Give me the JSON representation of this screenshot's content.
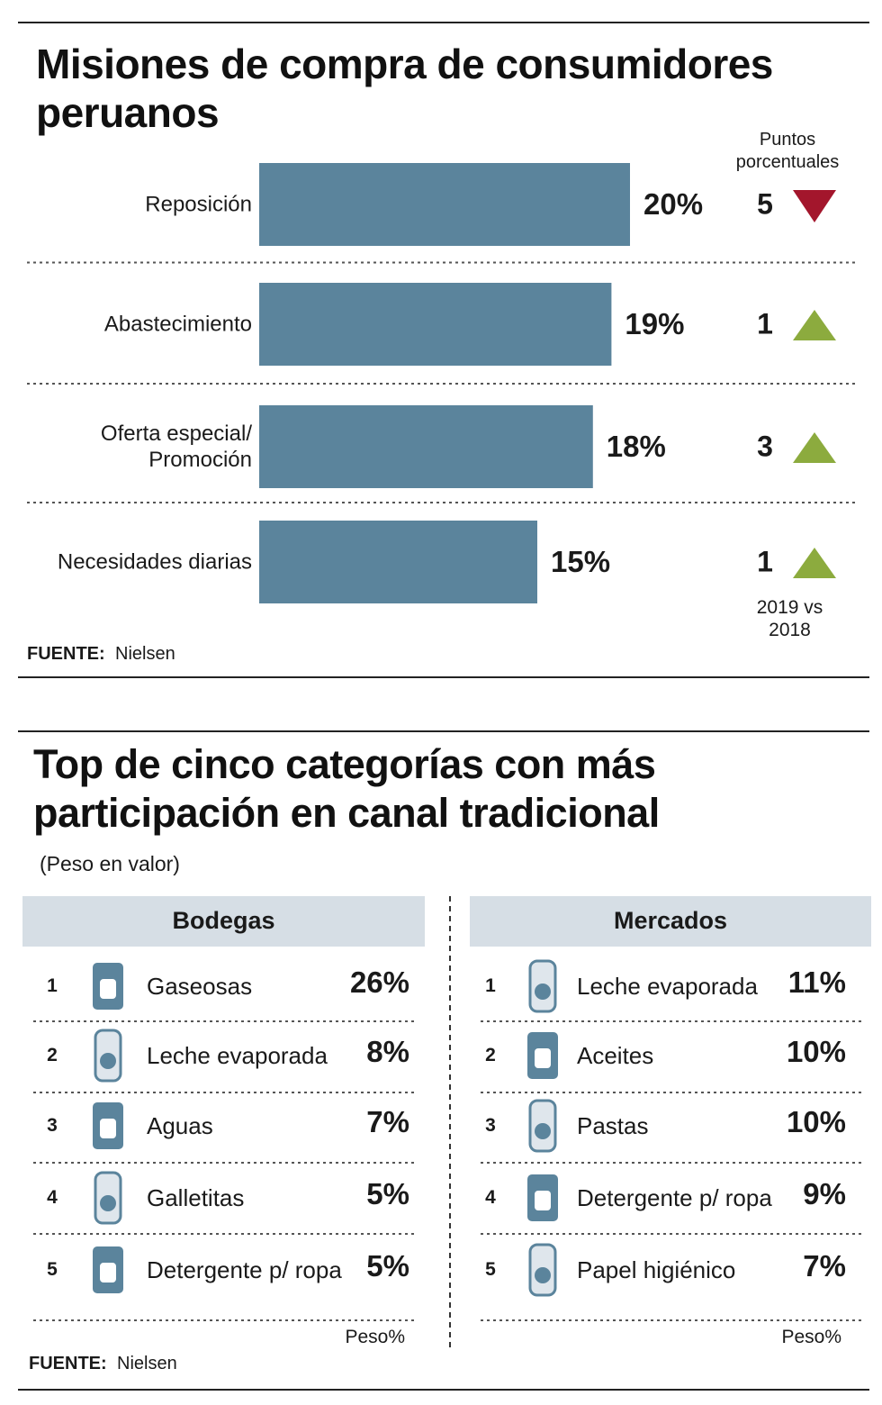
{
  "chart_data": {
    "type": "bar",
    "orientation": "horizontal",
    "title": "Misiones de compra de consumidores peruanos",
    "categories": [
      "Reposición",
      "Abastecimiento",
      "Oferta especial/ Promoción",
      "Necesidades diarias"
    ],
    "values": [
      20,
      19,
      18,
      15
    ],
    "value_labels": [
      "20%",
      "19%",
      "18%",
      "15%"
    ],
    "color": "#5b849c",
    "change_label": "Puntos porcentuales",
    "changes": [
      5,
      1,
      3,
      1
    ],
    "change_directions": [
      "down",
      "up",
      "up",
      "up"
    ],
    "change_colors": {
      "down": "#a3162c",
      "up": "#8cab3e"
    },
    "change_note": "2019 vs 2018",
    "source_label": "FUENTE:",
    "source": "Nielsen"
  },
  "table_section": {
    "title": "Top de cinco categorías con más participación en canal tradicional",
    "subtitle": "(Peso en valor)",
    "tables": [
      {
        "header": "Bodegas",
        "unit_label": "Peso%",
        "rows": [
          {
            "rank": 1,
            "name": "Gaseosas",
            "value": 26,
            "value_label": "26%"
          },
          {
            "rank": 2,
            "name": "Leche evaporada",
            "value": 8,
            "value_label": "8%"
          },
          {
            "rank": 3,
            "name": "Aguas",
            "value": 7,
            "value_label": "7%"
          },
          {
            "rank": 4,
            "name": "Galletitas",
            "value": 5,
            "value_label": "5%"
          },
          {
            "rank": 5,
            "name": "Detergente p/ ropa",
            "value": 5,
            "value_label": "5%"
          }
        ]
      },
      {
        "header": "Mercados",
        "unit_label": "Peso%",
        "rows": [
          {
            "rank": 1,
            "name": "Leche evaporada",
            "value": 11,
            "value_label": "11%"
          },
          {
            "rank": 2,
            "name": "Aceites",
            "value": 10,
            "value_label": "10%"
          },
          {
            "rank": 3,
            "name": "Pastas",
            "value": 10,
            "value_label": "10%"
          },
          {
            "rank": 4,
            "name": "Detergente p/ ropa",
            "value": 9,
            "value_label": "9%"
          },
          {
            "rank": 5,
            "name": "Papel higiénico",
            "value": 7,
            "value_label": "7%"
          }
        ]
      }
    ],
    "source_label": "FUENTE:",
    "source": "Nielsen"
  }
}
